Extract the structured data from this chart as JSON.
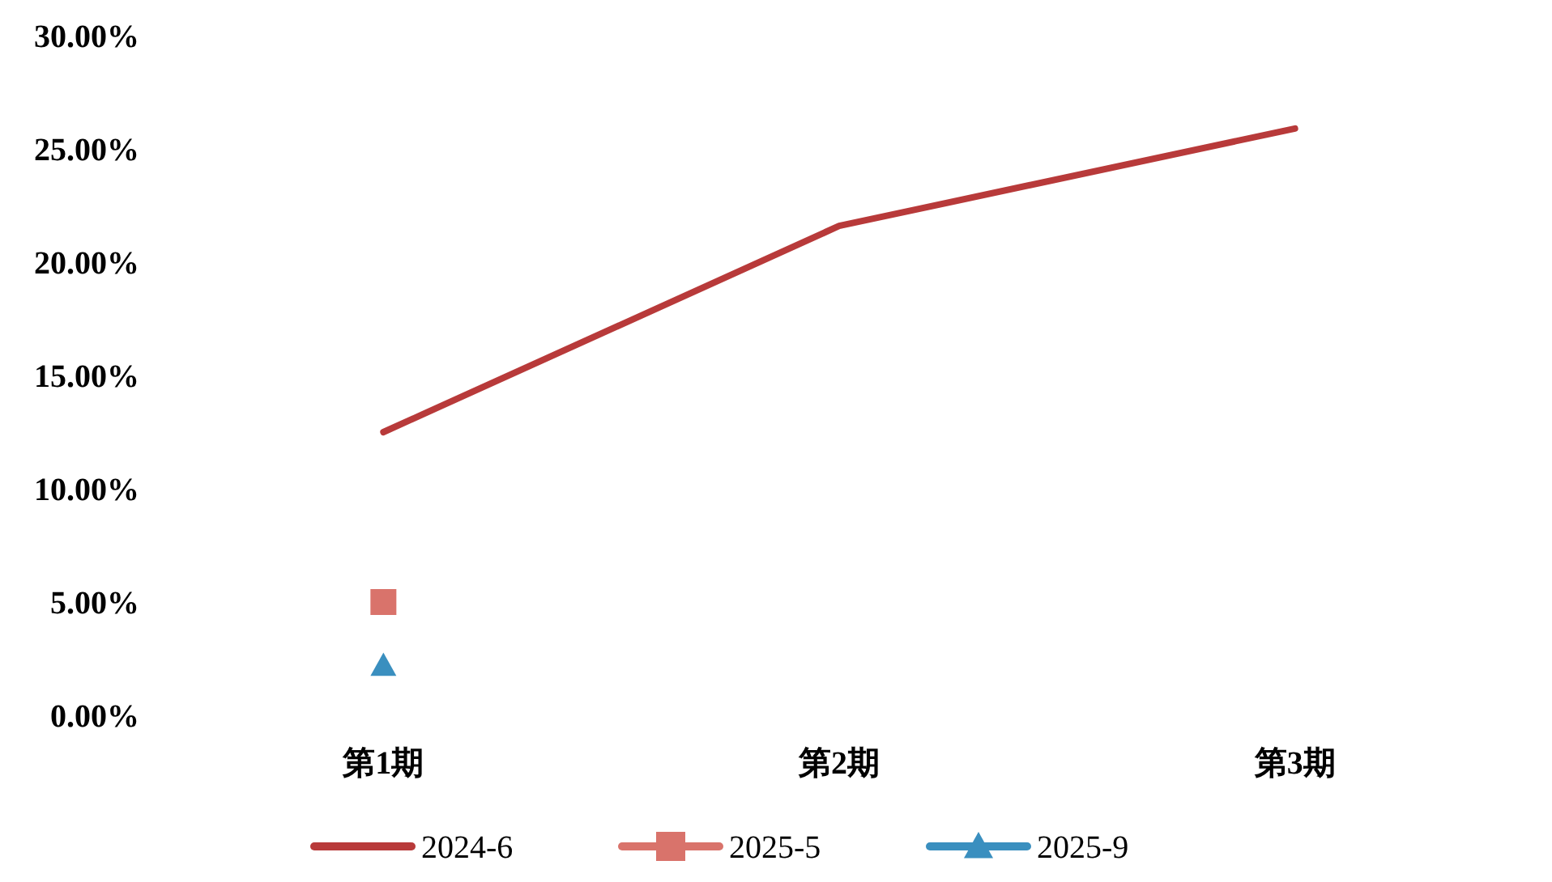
{
  "chart_data": {
    "type": "line",
    "categories": [
      "第1期",
      "第2期",
      "第3期"
    ],
    "series": [
      {
        "name": "2024-6",
        "color": "#b83a3a",
        "values": [
          12.5,
          21.6,
          25.9
        ],
        "marker": "none"
      },
      {
        "name": "2025-5",
        "color": "#d9736b",
        "values": [
          5.0,
          null,
          null
        ],
        "marker": "square"
      },
      {
        "name": "2025-9",
        "color": "#3a8fbf",
        "values": [
          2.2,
          null,
          null
        ],
        "marker": "triangle"
      }
    ],
    "ylim": [
      0,
      30
    ],
    "yticks": [
      {
        "value": 0,
        "label": "0.00%"
      },
      {
        "value": 5,
        "label": "5.00%"
      },
      {
        "value": 10,
        "label": "10.00%"
      },
      {
        "value": 15,
        "label": "15.00%"
      },
      {
        "value": 20,
        "label": "20.00%"
      },
      {
        "value": 25,
        "label": "25.00%"
      },
      {
        "value": 30,
        "label": "30.00%"
      }
    ],
    "legend": "bottom"
  }
}
